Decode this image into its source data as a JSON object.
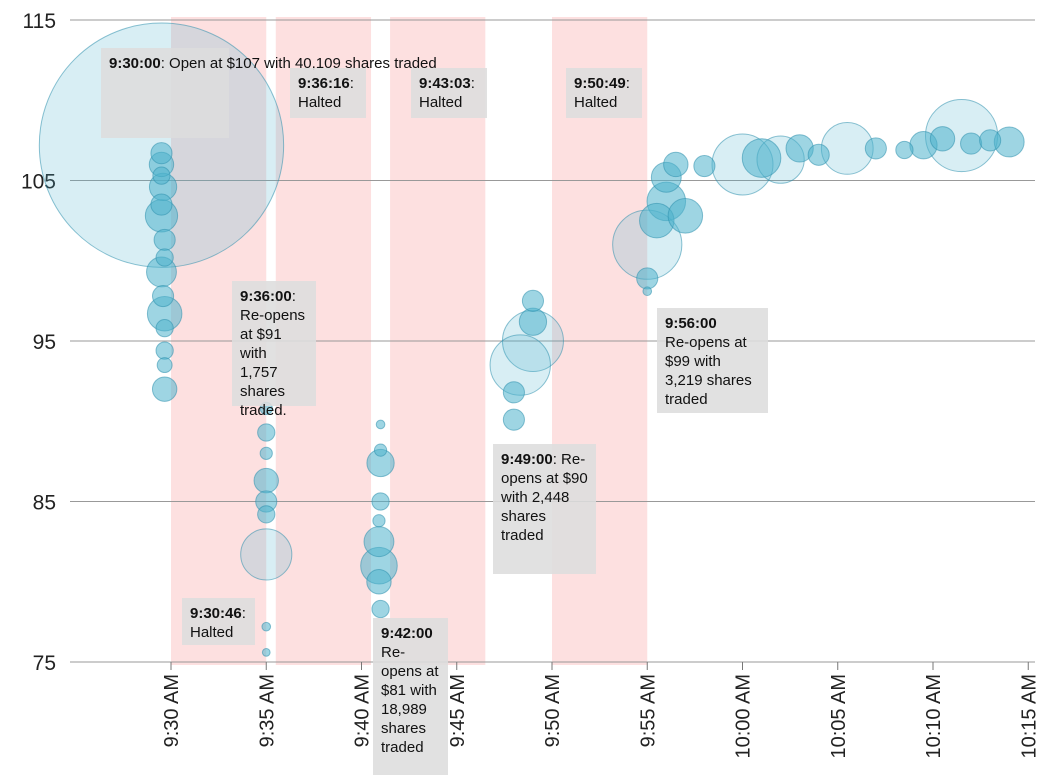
{
  "chart_data": {
    "type": "scatter",
    "title": "",
    "xlabel": "",
    "ylabel": "",
    "ylim": [
      75,
      115
    ],
    "yticks": [
      "75",
      "85",
      "95",
      "105",
      "115"
    ],
    "xticks": [
      "9:30 AM",
      "9:35 AM",
      "9:40 AM",
      "9:45 AM",
      "9:50 AM",
      "9:55 AM",
      "10:00 AM",
      "10:05 AM",
      "10:10 AM",
      "10:15 AM"
    ],
    "grid": "horizontal",
    "halted_periods": [
      {
        "start": "9:30:00",
        "end": "9:35:00"
      },
      {
        "start": "9:35:30",
        "end": "9:40:30"
      },
      {
        "start": "9:41:30",
        "end": "9:46:30"
      },
      {
        "start": "9:50:00",
        "end": "9:55:00"
      }
    ],
    "colors": {
      "bubble_fill": "#4fb3cc",
      "halt_band": "#fde0e0",
      "grid": "#999999"
    },
    "points": [
      {
        "t": "9:29:30",
        "price": 107.2,
        "size": 40109
      },
      {
        "t": "9:29:30",
        "price": 106.7,
        "size": 300
      },
      {
        "t": "9:29:30",
        "price": 106.0,
        "size": 400
      },
      {
        "t": "9:29:30",
        "price": 105.3,
        "size": 200
      },
      {
        "t": "9:29:35",
        "price": 104.6,
        "size": 500
      },
      {
        "t": "9:29:30",
        "price": 103.5,
        "size": 300
      },
      {
        "t": "9:29:30",
        "price": 102.8,
        "size": 700
      },
      {
        "t": "9:29:40",
        "price": 101.3,
        "size": 300
      },
      {
        "t": "9:29:40",
        "price": 100.2,
        "size": 200
      },
      {
        "t": "9:29:30",
        "price": 99.3,
        "size": 600
      },
      {
        "t": "9:29:35",
        "price": 97.8,
        "size": 300
      },
      {
        "t": "9:29:40",
        "price": 96.7,
        "size": 800
      },
      {
        "t": "9:29:40",
        "price": 95.8,
        "size": 200
      },
      {
        "t": "9:29:40",
        "price": 94.4,
        "size": 200
      },
      {
        "t": "9:29:40",
        "price": 93.5,
        "size": 150
      },
      {
        "t": "9:29:40",
        "price": 92.0,
        "size": 400
      },
      {
        "t": "9:35:00",
        "price": 90.8,
        "size": 100
      },
      {
        "t": "9:35:00",
        "price": 89.3,
        "size": 200
      },
      {
        "t": "9:35:00",
        "price": 88.0,
        "size": 100
      },
      {
        "t": "9:35:00",
        "price": 86.3,
        "size": 400
      },
      {
        "t": "9:35:00",
        "price": 85.0,
        "size": 300
      },
      {
        "t": "9:35:00",
        "price": 84.2,
        "size": 200
      },
      {
        "t": "9:35:00",
        "price": 81.7,
        "size": 1757
      },
      {
        "t": "9:35:00",
        "price": 77.2,
        "size": 50
      },
      {
        "t": "9:35:00",
        "price": 75.6,
        "size": 40
      },
      {
        "t": "9:41:00",
        "price": 89.8,
        "size": 50
      },
      {
        "t": "9:41:00",
        "price": 88.2,
        "size": 100
      },
      {
        "t": "9:41:00",
        "price": 87.4,
        "size": 500
      },
      {
        "t": "9:41:00",
        "price": 85.0,
        "size": 200
      },
      {
        "t": "9:40:55",
        "price": 83.8,
        "size": 100
      },
      {
        "t": "9:40:55",
        "price": 82.5,
        "size": 600
      },
      {
        "t": "9:40:55",
        "price": 81.0,
        "size": 900
      },
      {
        "t": "9:40:55",
        "price": 80.0,
        "size": 400
      },
      {
        "t": "9:41:00",
        "price": 78.3,
        "size": 200
      },
      {
        "t": "9:48:00",
        "price": 90.1,
        "size": 300
      },
      {
        "t": "9:48:00",
        "price": 91.8,
        "size": 300
      },
      {
        "t": "9:48:20",
        "price": 93.5,
        "size": 2448
      },
      {
        "t": "9:49:00",
        "price": 95.0,
        "size": 2500
      },
      {
        "t": "9:49:00",
        "price": 96.2,
        "size": 500
      },
      {
        "t": "9:49:00",
        "price": 97.5,
        "size": 300
      },
      {
        "t": "9:55:00",
        "price": 98.1,
        "size": 50
      },
      {
        "t": "9:55:00",
        "price": 98.9,
        "size": 300
      },
      {
        "t": "9:55:00",
        "price": 101.0,
        "size": 3219
      },
      {
        "t": "9:55:30",
        "price": 102.5,
        "size": 800
      },
      {
        "t": "9:56:00",
        "price": 103.7,
        "size": 1000
      },
      {
        "t": "9:57:00",
        "price": 102.8,
        "size": 800
      },
      {
        "t": "9:56:00",
        "price": 105.2,
        "size": 600
      },
      {
        "t": "9:56:30",
        "price": 106.0,
        "size": 400
      },
      {
        "t": "9:58:00",
        "price": 105.9,
        "size": 300
      },
      {
        "t": "10:00:00",
        "price": 106.0,
        "size": 2500
      },
      {
        "t": "10:01:00",
        "price": 106.4,
        "size": 1000
      },
      {
        "t": "10:02:00",
        "price": 106.3,
        "size": 1500
      },
      {
        "t": "10:03:00",
        "price": 107.0,
        "size": 500
      },
      {
        "t": "10:04:00",
        "price": 106.6,
        "size": 300
      },
      {
        "t": "10:05:30",
        "price": 107.0,
        "size": 1800
      },
      {
        "t": "10:07:00",
        "price": 107.0,
        "size": 300
      },
      {
        "t": "10:08:30",
        "price": 106.9,
        "size": 200
      },
      {
        "t": "10:09:30",
        "price": 107.2,
        "size": 500
      },
      {
        "t": "10:10:30",
        "price": 107.6,
        "size": 400
      },
      {
        "t": "10:11:30",
        "price": 107.8,
        "size": 3500
      },
      {
        "t": "10:12:00",
        "price": 107.3,
        "size": 300
      },
      {
        "t": "10:13:00",
        "price": 107.5,
        "size": 300
      },
      {
        "t": "10:14:00",
        "price": 107.4,
        "size": 600
      }
    ]
  },
  "annotations": [
    {
      "time": "9:30:00",
      "text": ": Open at $107 with 40,109 shares traded"
    },
    {
      "time": "9:30:46",
      "text": ": Halted"
    },
    {
      "time": "9:36:00",
      "text": ": Re-opens at $91 with 1,757 shares traded."
    },
    {
      "time": "9:36:16",
      "text": ": Halted"
    },
    {
      "time": "9:42:00",
      "text": "Re-opens at $81 with 18,989 shares traded"
    },
    {
      "time": "9:43:03",
      "text": ": Halted"
    },
    {
      "time": "9:49:00",
      "text": ": Re-opens at $90 with 2,448 shares traded"
    },
    {
      "time": "9:50:49",
      "text": ": Halted"
    },
    {
      "time": "9:56:00",
      "text": "Re-opens at $99 with 3,219 shares traded"
    }
  ]
}
